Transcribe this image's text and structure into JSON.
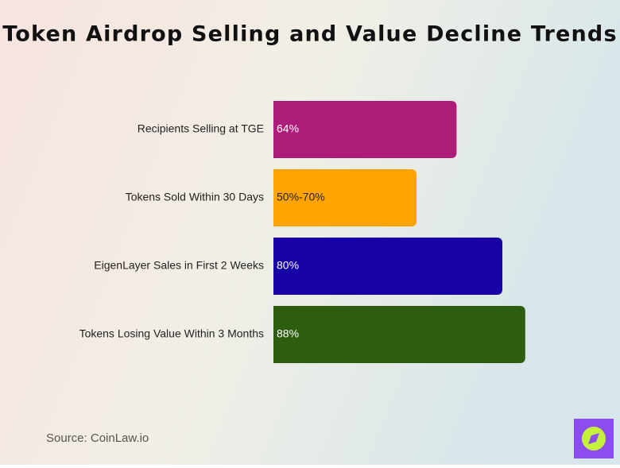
{
  "chart_data": {
    "type": "bar",
    "orientation": "horizontal",
    "title": "Token Airdrop Selling and Value Decline Trends",
    "categories": [
      "Recipients Selling at TGE",
      "Tokens Sold Within 30 Days",
      "EigenLayer Sales in First 2 Weeks",
      "Tokens Losing Value Within 3 Months"
    ],
    "values": [
      64,
      50,
      80,
      88
    ],
    "value_labels": [
      "64%",
      "50%-70%",
      "80%",
      "88%"
    ],
    "colors": [
      "#ad1c78",
      "#ffa400",
      "#1700a6",
      "#2e5d10"
    ],
    "source": "Source: CoinLaw.io"
  }
}
